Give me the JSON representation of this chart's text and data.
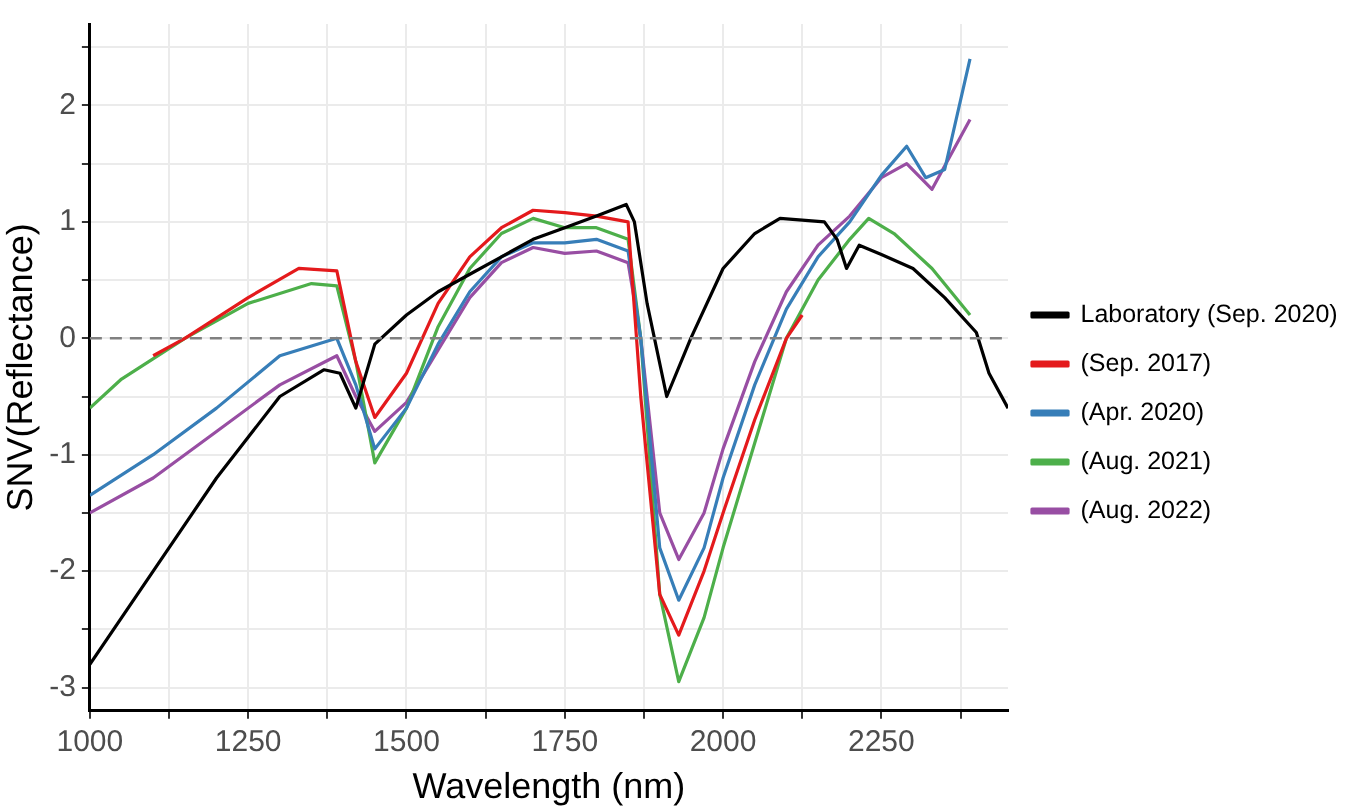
{
  "chart_data": {
    "type": "line",
    "xlabel": "Wavelength (nm)",
    "ylabel": "SNV(Reflectance)",
    "xlim": [
      1000,
      2450
    ],
    "ylim": [
      -3.2,
      2.7
    ],
    "xticks": [
      1000,
      {
        "value": 1125,
        "label": null
      },
      1250,
      {
        "value": 1375,
        "label": null
      },
      1500,
      {
        "value": 1625,
        "label": null
      },
      1750,
      {
        "value": 1875,
        "label": null
      },
      2000,
      {
        "value": 2125,
        "label": null
      },
      2250,
      {
        "value": 2375,
        "label": null
      }
    ],
    "yticks": [
      -3,
      {
        "value": -2.5,
        "label": null
      },
      -2,
      {
        "value": -1.5,
        "label": null
      },
      -1,
      {
        "value": -0.5,
        "label": null
      },
      0,
      {
        "value": 0.5,
        "label": null
      },
      1,
      {
        "value": 1.5,
        "label": null
      },
      2,
      {
        "value": 2.5,
        "label": null
      }
    ],
    "grid": true,
    "legend": "right",
    "marker": "none",
    "line_style": "solid",
    "ref_lines": [
      {
        "axis": "y",
        "value": 0,
        "label": null,
        "color": "#808080",
        "line_style": "dashed"
      }
    ],
    "series": [
      {
        "name": "Laboratory (Sep. 2020)",
        "color": "#000000",
        "x": [
          1000,
          1100,
          1200,
          1300,
          1370,
          1395,
          1420,
          1450,
          1500,
          1550,
          1600,
          1650,
          1700,
          1750,
          1800,
          1847,
          1860,
          1880,
          1911,
          1949,
          2000,
          2050,
          2090,
          2160,
          2180,
          2195,
          2215,
          2250,
          2300,
          2350,
          2400,
          2420,
          2450
        ],
        "values": [
          -2.8,
          -2.0,
          -1.2,
          -0.5,
          -0.27,
          -0.3,
          -0.6,
          -0.05,
          0.2,
          0.4,
          0.55,
          0.7,
          0.85,
          0.95,
          1.05,
          1.15,
          1.0,
          0.3,
          -0.5,
          0.0,
          0.6,
          0.9,
          1.03,
          1.0,
          0.85,
          0.6,
          0.8,
          0.72,
          0.6,
          0.35,
          0.05,
          -0.3,
          -0.6
        ]
      },
      {
        "name": "(Sep. 2017)",
        "color": "#e41a1c",
        "x": [
          1100,
          1150,
          1250,
          1330,
          1390,
          1420,
          1450,
          1500,
          1550,
          1600,
          1650,
          1700,
          1750,
          1800,
          1850,
          1870,
          1900,
          1930,
          1970,
          2000,
          2050,
          2100,
          2125
        ],
        "values": [
          -0.15,
          0.0,
          0.35,
          0.6,
          0.58,
          -0.2,
          -0.68,
          -0.3,
          0.3,
          0.7,
          0.95,
          1.1,
          1.08,
          1.05,
          1.0,
          -0.5,
          -2.2,
          -2.55,
          -2.0,
          -1.5,
          -0.7,
          0.0,
          0.2
        ]
      },
      {
        "name": "(Apr. 2020)",
        "color": "#377eb8",
        "x": [
          1000,
          1100,
          1200,
          1300,
          1390,
          1420,
          1450,
          1500,
          1550,
          1600,
          1650,
          1700,
          1750,
          1800,
          1850,
          1870,
          1900,
          1930,
          1970,
          2000,
          2050,
          2100,
          2150,
          2200,
          2250,
          2290,
          2320,
          2350,
          2390
        ],
        "values": [
          -1.35,
          -1.0,
          -0.6,
          -0.15,
          0.0,
          -0.4,
          -0.95,
          -0.6,
          -0.05,
          0.4,
          0.7,
          0.82,
          0.82,
          0.85,
          0.75,
          0.0,
          -1.8,
          -2.25,
          -1.8,
          -1.2,
          -0.4,
          0.25,
          0.7,
          1.0,
          1.4,
          1.65,
          1.38,
          1.45,
          2.4
        ]
      },
      {
        "name": "(Aug. 2021)",
        "color": "#4daf4a",
        "x": [
          1000,
          1050,
          1150,
          1250,
          1350,
          1390,
          1420,
          1450,
          1500,
          1550,
          1600,
          1650,
          1700,
          1750,
          1800,
          1850,
          1870,
          1900,
          1930,
          1970,
          2000,
          2050,
          2100,
          2150,
          2200,
          2230,
          2270,
          2330,
          2360,
          2390
        ],
        "values": [
          -0.6,
          -0.35,
          0.0,
          0.3,
          0.47,
          0.45,
          -0.2,
          -1.07,
          -0.6,
          0.1,
          0.6,
          0.9,
          1.03,
          0.95,
          0.95,
          0.85,
          0.0,
          -2.2,
          -2.95,
          -2.4,
          -1.8,
          -0.9,
          0.0,
          0.5,
          0.85,
          1.03,
          0.9,
          0.6,
          0.4,
          0.2
        ]
      },
      {
        "name": "(Aug. 2022)",
        "color": "#984ea3",
        "x": [
          1000,
          1100,
          1200,
          1300,
          1390,
          1420,
          1450,
          1500,
          1550,
          1600,
          1650,
          1700,
          1750,
          1800,
          1850,
          1870,
          1900,
          1930,
          1970,
          2000,
          2050,
          2100,
          2150,
          2200,
          2250,
          2290,
          2330,
          2390
        ],
        "values": [
          -1.5,
          -1.2,
          -0.8,
          -0.4,
          -0.15,
          -0.5,
          -0.8,
          -0.55,
          -0.1,
          0.35,
          0.65,
          0.78,
          0.73,
          0.75,
          0.65,
          0.0,
          -1.5,
          -1.9,
          -1.5,
          -0.95,
          -0.2,
          0.4,
          0.8,
          1.05,
          1.38,
          1.5,
          1.28,
          1.88
        ]
      }
    ]
  }
}
